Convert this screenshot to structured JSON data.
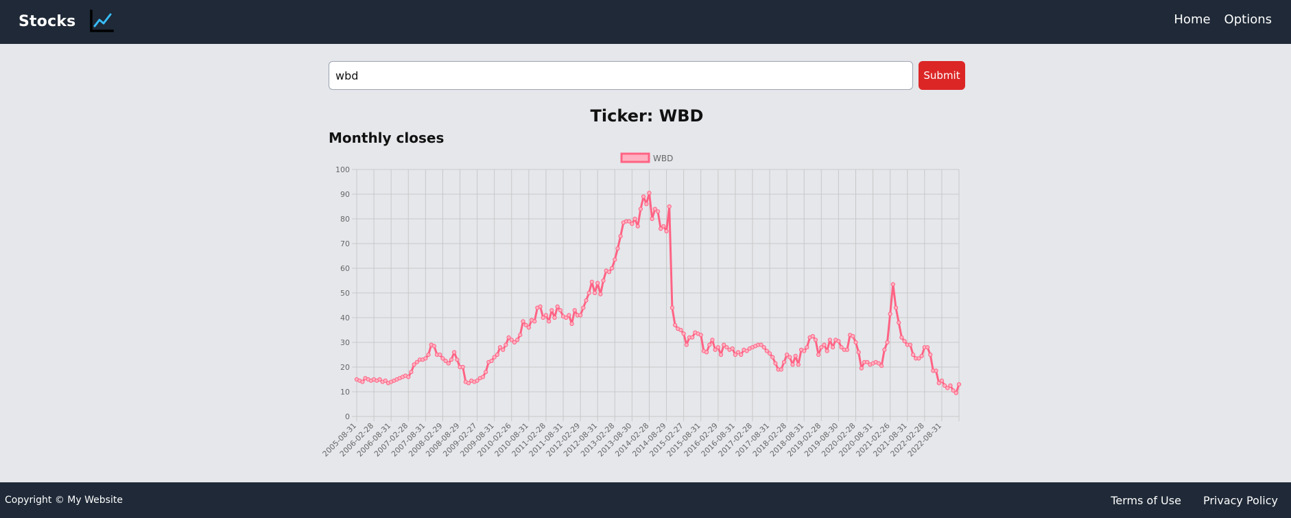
{
  "nav": {
    "brand": "Stocks",
    "links": [
      "Home",
      "Options"
    ]
  },
  "search": {
    "value": "wbd",
    "submit_label": "Submit"
  },
  "ticker_title": "Ticker: WBD",
  "chart_heading": "Monthly closes",
  "chart_data": {
    "type": "line",
    "title": "",
    "xlabel": "",
    "ylabel": "",
    "ylim": [
      0,
      100
    ],
    "yticks": [
      0,
      10,
      20,
      30,
      40,
      50,
      60,
      70,
      80,
      90,
      100
    ],
    "grid": true,
    "legend_position": "top-center",
    "line_color": "#ff6384",
    "fill_color": "#ffb1c1",
    "x_tick_labels": [
      "2005-08-31",
      "2006-02-28",
      "2006-08-31",
      "2007-02-28",
      "2007-08-31",
      "2008-02-29",
      "2008-08-29",
      "2009-02-27",
      "2009-08-31",
      "2010-02-26",
      "2010-08-31",
      "2011-02-28",
      "2011-08-31",
      "2012-02-29",
      "2012-08-31",
      "2013-02-28",
      "2013-08-30",
      "2014-02-28",
      "2014-08-29",
      "2015-02-27",
      "2015-08-31",
      "2016-02-29",
      "2016-08-31",
      "2017-02-28",
      "2017-08-31",
      "2018-02-28",
      "2018-08-31",
      "2019-02-28",
      "2019-08-30",
      "2020-02-28",
      "2020-08-31",
      "2021-02-26",
      "2021-08-31",
      "2022-02-28",
      "2022-08-31"
    ],
    "series": [
      {
        "name": "WBD",
        "values": [
          15,
          14.5,
          14,
          15.5,
          15,
          14.5,
          15,
          14.5,
          15,
          14,
          14.5,
          13.5,
          14,
          14.5,
          15,
          15.5,
          16,
          16.5,
          16,
          18,
          21,
          22,
          23,
          23,
          23.5,
          25,
          29,
          28.5,
          25,
          25,
          23.5,
          22.5,
          21.5,
          23,
          26,
          23,
          20,
          20,
          14,
          13.5,
          14.5,
          14,
          14.5,
          15.5,
          16,
          18,
          22,
          22.5,
          24,
          25,
          28,
          27,
          29,
          32,
          31,
          30,
          31,
          33,
          38.5,
          37,
          36,
          39,
          38.5,
          44,
          44.5,
          40,
          41,
          38.5,
          43,
          40,
          44.5,
          43,
          40.5,
          40,
          41,
          37.5,
          43,
          41,
          41,
          44,
          47,
          50,
          54.5,
          50,
          54,
          49.5,
          55,
          59,
          58.5,
          60,
          63.5,
          68,
          73,
          78.5,
          79,
          79,
          78,
          80,
          77,
          84,
          89,
          86,
          90.5,
          80,
          84,
          83,
          76,
          77,
          75,
          85,
          44,
          37,
          35.5,
          35,
          33.5,
          29,
          32,
          32,
          34,
          33.5,
          33,
          26.5,
          26,
          29,
          31,
          27,
          28,
          25,
          29,
          28,
          27,
          27.5,
          25,
          26,
          25,
          27,
          26.5,
          27.5,
          28,
          28.5,
          29,
          29,
          28,
          26.5,
          25.5,
          24,
          21.5,
          19,
          19,
          22,
          25,
          24,
          21,
          24.5,
          21,
          27,
          26.5,
          28,
          32,
          32.5,
          31,
          25,
          28,
          29,
          26.5,
          31,
          28,
          31,
          30.5,
          28,
          27,
          27,
          33,
          32.5,
          30,
          26,
          19.5,
          22,
          22,
          21,
          21.5,
          22,
          21.5,
          20.5,
          27,
          30,
          41.5,
          53.5,
          44,
          38,
          32,
          30.5,
          29,
          29,
          25,
          23.5,
          23.5,
          24.5,
          28,
          28,
          25,
          18.5,
          18.5,
          13.5,
          14.5,
          12.5,
          11.5,
          12.5,
          10.5,
          9.5,
          13
        ]
      }
    ]
  },
  "footer": {
    "copyright": "Copyright © My Website",
    "links": [
      "Terms of Use",
      "Privacy Policy"
    ]
  }
}
